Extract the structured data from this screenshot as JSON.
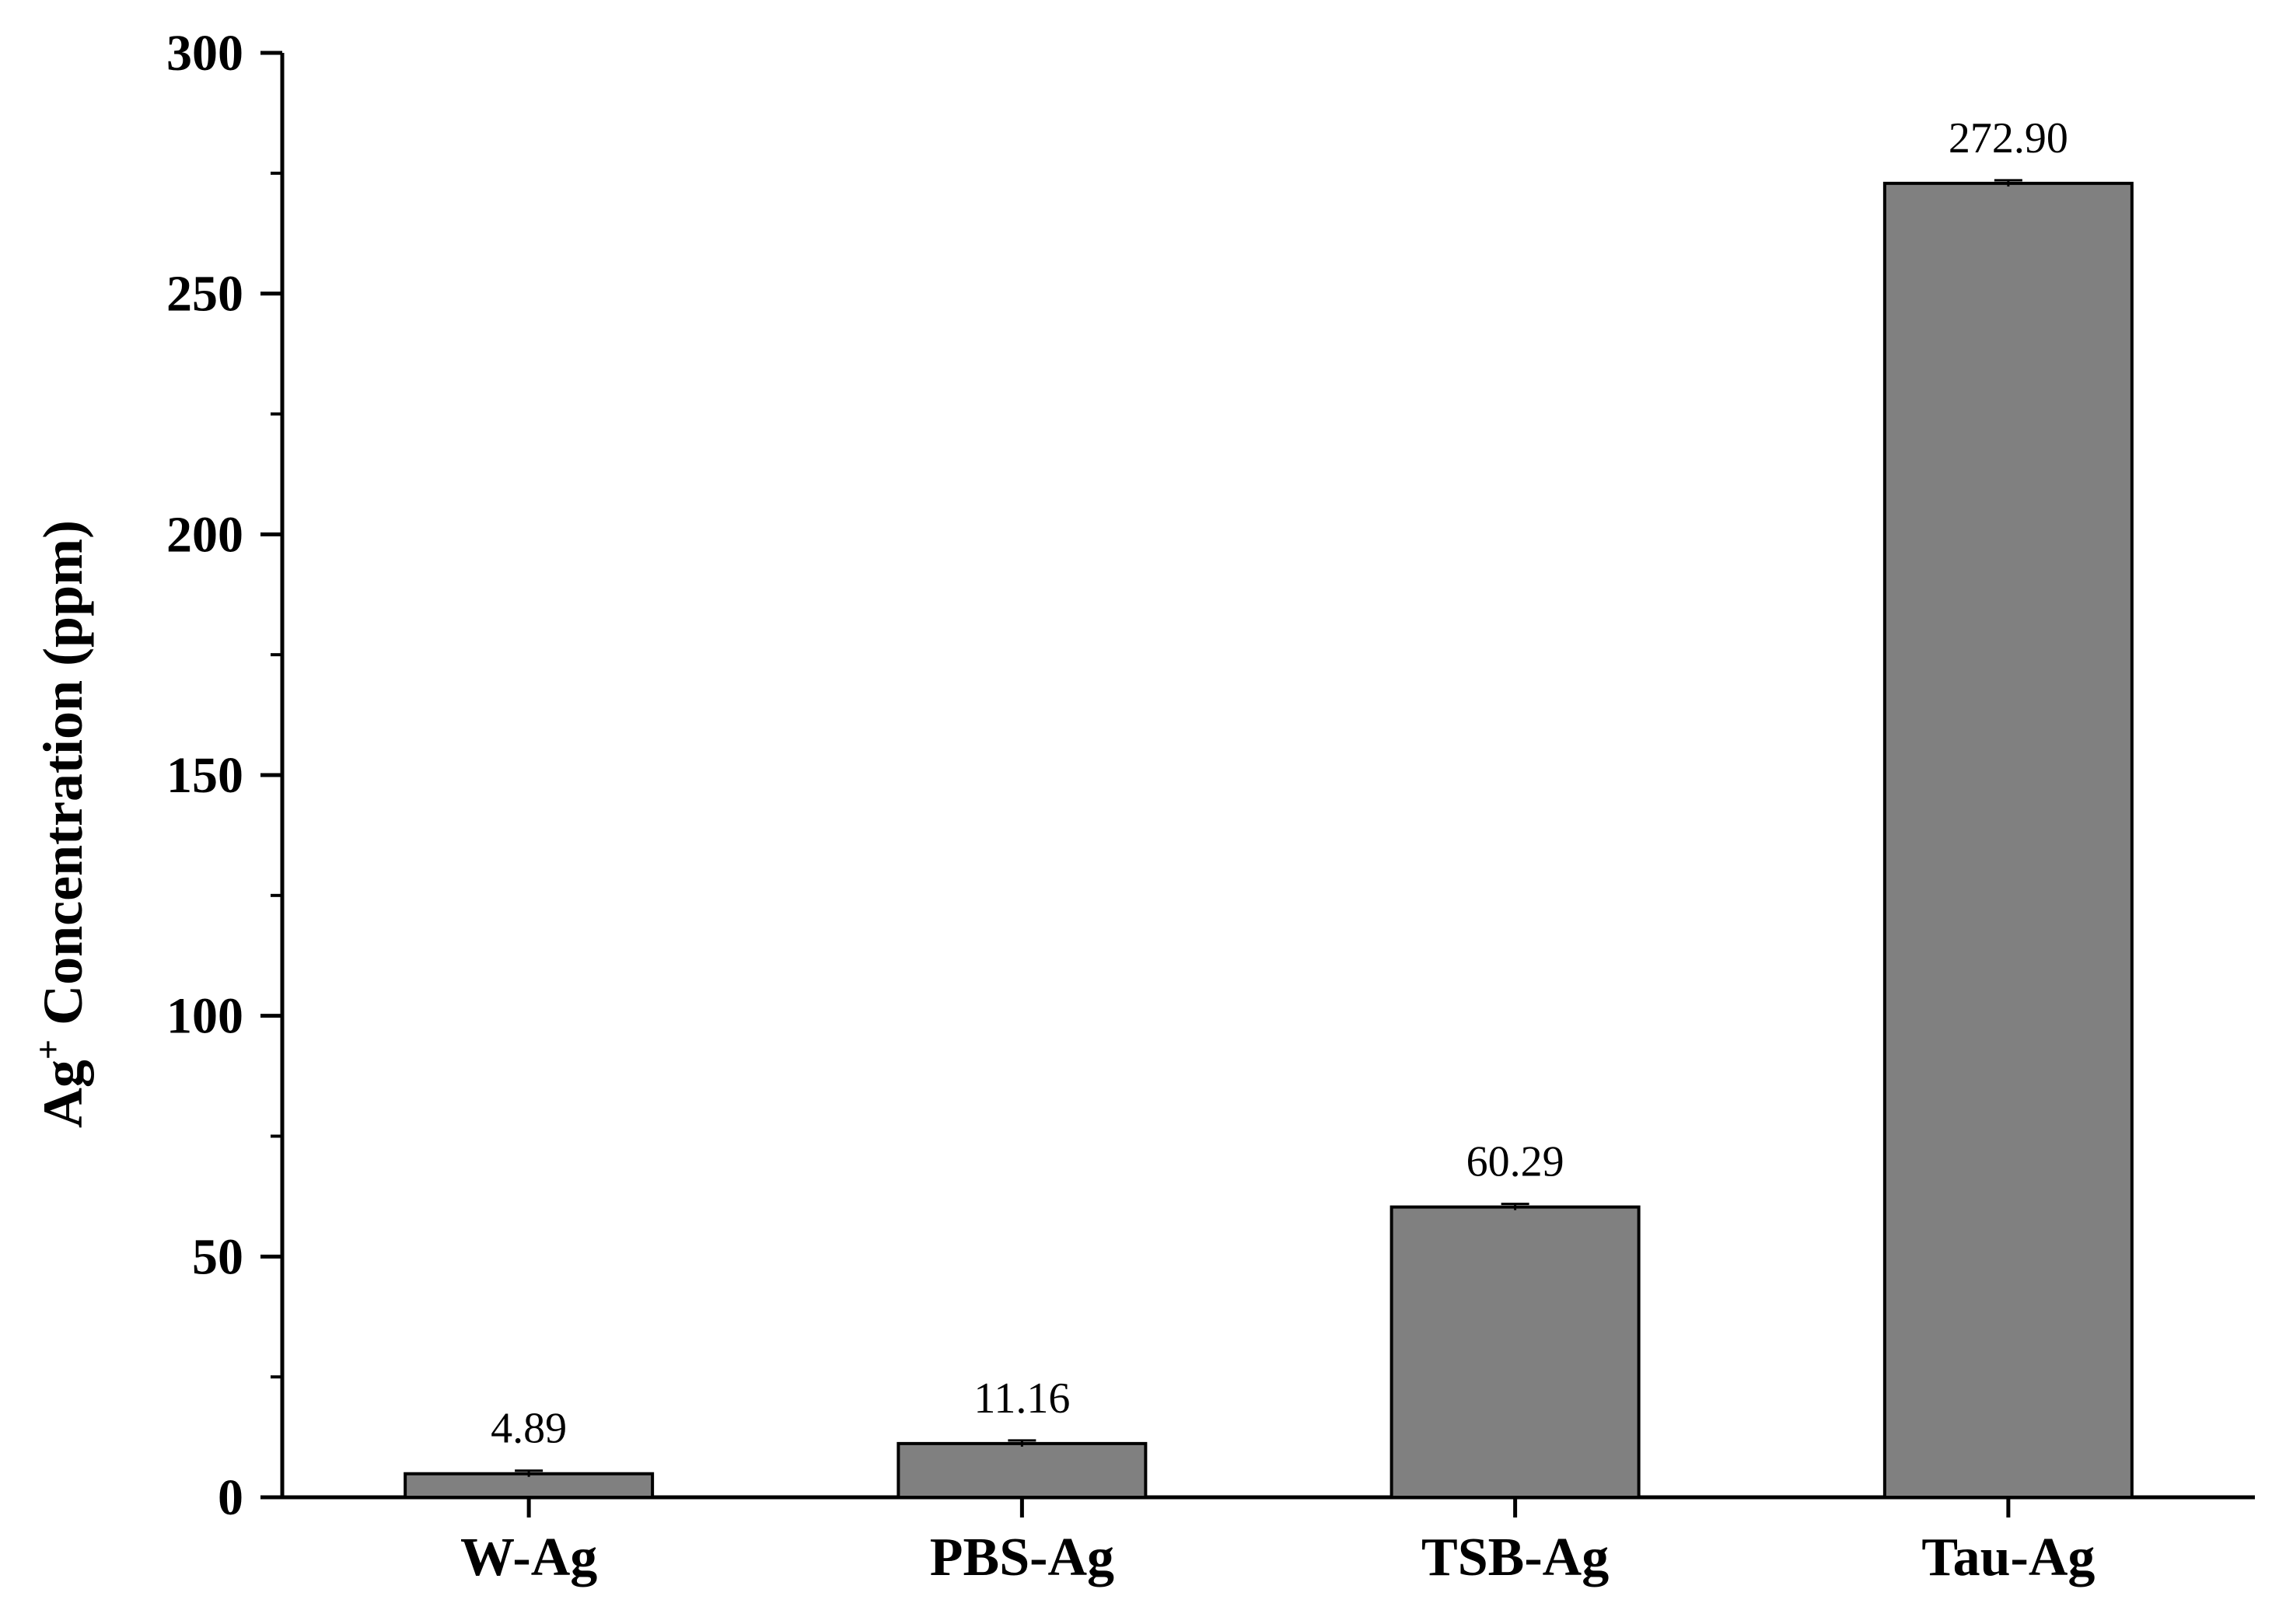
{
  "chart_data": {
    "type": "bar",
    "categories": [
      "W-Ag",
      "PBS-Ag",
      "TSB-Ag",
      "Tau-Ag"
    ],
    "values": [
      4.89,
      11.16,
      60.29,
      272.9
    ],
    "data_labels": [
      "4.89",
      "11.16",
      "60.29",
      "272.90"
    ],
    "ylabel_main": "Ag",
    "ylabel_sup": "+",
    "ylabel_rest": " Concentration (ppm)",
    "xlabel": "",
    "ylim": [
      0,
      300
    ],
    "yticks": [
      0,
      50,
      100,
      150,
      200,
      250,
      300
    ],
    "error_bars": true,
    "grid": false,
    "bar_color": "#808080",
    "edge_color": "#000000"
  }
}
